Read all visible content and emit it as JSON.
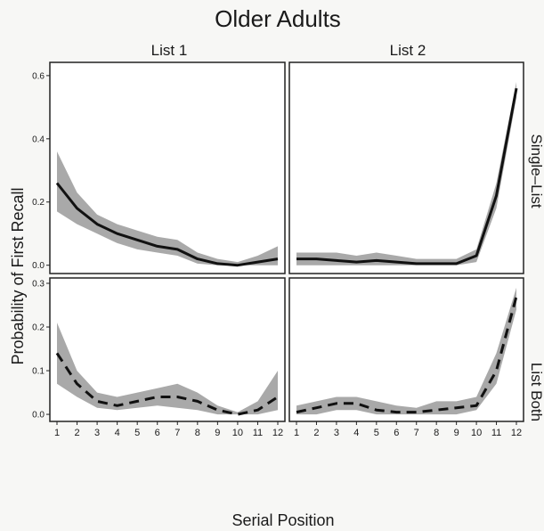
{
  "title": "Older Adults",
  "xlabel": "Serial Position",
  "ylabel": "Probability of First Recall",
  "col_labels": [
    "List 1",
    "List 2"
  ],
  "row_labels": [
    "Single–List",
    "List Both"
  ],
  "colors": {
    "line": "#111111",
    "band": "#9a9a9a",
    "panel_bg": "#ffffff",
    "frame": "#222222"
  },
  "chart_data": [
    {
      "type": "line",
      "panel": "single-list-list1",
      "row": "Single–List",
      "column": "List 1",
      "line_style": "solid",
      "x": [
        1,
        2,
        3,
        4,
        5,
        6,
        7,
        8,
        9,
        10,
        11,
        12
      ],
      "y": [
        0.26,
        0.18,
        0.13,
        0.1,
        0.08,
        0.06,
        0.05,
        0.02,
        0.005,
        0.0,
        0.01,
        0.02
      ],
      "band_lower": [
        0.17,
        0.13,
        0.1,
        0.07,
        0.05,
        0.04,
        0.03,
        0.005,
        0.0,
        0.0,
        0.0,
        0.0
      ],
      "band_upper": [
        0.36,
        0.23,
        0.16,
        0.13,
        0.11,
        0.09,
        0.08,
        0.04,
        0.02,
        0.01,
        0.03,
        0.06
      ],
      "xlim": [
        1,
        12
      ],
      "ylim": [
        0,
        0.6
      ],
      "yticks": [
        "0.0",
        "0.2",
        "0.4",
        "0.6"
      ]
    },
    {
      "type": "line",
      "panel": "single-list-list2",
      "row": "Single–List",
      "column": "List 2",
      "line_style": "solid",
      "x": [
        1,
        2,
        3,
        4,
        5,
        6,
        7,
        8,
        9,
        10,
        11,
        12
      ],
      "y": [
        0.02,
        0.02,
        0.015,
        0.01,
        0.015,
        0.01,
        0.005,
        0.005,
        0.005,
        0.03,
        0.22,
        0.56
      ],
      "band_lower": [
        0.0,
        0.0,
        0.0,
        0.0,
        0.0,
        0.0,
        0.0,
        0.0,
        0.0,
        0.01,
        0.18,
        0.53
      ],
      "band_upper": [
        0.04,
        0.04,
        0.04,
        0.03,
        0.04,
        0.03,
        0.02,
        0.02,
        0.02,
        0.05,
        0.26,
        0.58
      ],
      "xlim": [
        1,
        12
      ],
      "ylim": [
        0,
        0.6
      ],
      "yticks": [
        "0.0",
        "0.2",
        "0.4",
        "0.6"
      ]
    },
    {
      "type": "line",
      "panel": "list-both-list1",
      "row": "List Both",
      "column": "List 1",
      "line_style": "dashed",
      "x": [
        1,
        2,
        3,
        4,
        5,
        6,
        7,
        8,
        9,
        10,
        11,
        12
      ],
      "y": [
        0.14,
        0.07,
        0.03,
        0.02,
        0.03,
        0.04,
        0.04,
        0.03,
        0.01,
        0.0,
        0.01,
        0.04
      ],
      "band_lower": [
        0.07,
        0.04,
        0.015,
        0.01,
        0.015,
        0.02,
        0.015,
        0.01,
        0.0,
        0.0,
        0.0,
        0.01
      ],
      "band_upper": [
        0.21,
        0.1,
        0.05,
        0.04,
        0.05,
        0.06,
        0.07,
        0.05,
        0.02,
        0.005,
        0.03,
        0.1
      ],
      "xlim": [
        1,
        12
      ],
      "ylim": [
        0,
        0.3
      ],
      "yticks": [
        "0.0",
        "0.1",
        "0.2",
        "0.3"
      ]
    },
    {
      "type": "line",
      "panel": "list-both-list2",
      "row": "List Both",
      "column": "List 2",
      "line_style": "dashed",
      "x": [
        1,
        2,
        3,
        4,
        5,
        6,
        7,
        8,
        9,
        10,
        11,
        12
      ],
      "y": [
        0.005,
        0.015,
        0.025,
        0.025,
        0.01,
        0.005,
        0.005,
        0.01,
        0.015,
        0.02,
        0.1,
        0.27
      ],
      "band_lower": [
        0.0,
        0.0,
        0.01,
        0.01,
        0.0,
        0.0,
        0.0,
        0.0,
        0.0,
        0.01,
        0.07,
        0.24
      ],
      "band_upper": [
        0.02,
        0.03,
        0.04,
        0.04,
        0.03,
        0.02,
        0.015,
        0.03,
        0.03,
        0.04,
        0.14,
        0.29
      ],
      "xlim": [
        1,
        12
      ],
      "ylim": [
        0,
        0.3
      ],
      "yticks": [
        "0.0",
        "0.1",
        "0.2",
        "0.3"
      ]
    }
  ]
}
